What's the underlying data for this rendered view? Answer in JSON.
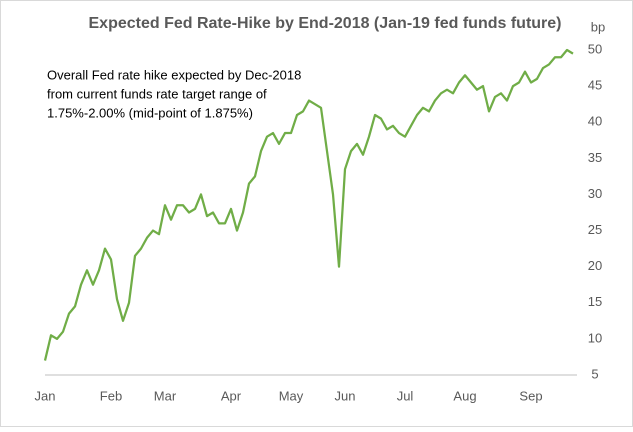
{
  "chart_data": {
    "type": "line",
    "title": "Expected Fed Rate-Hike by End-2018 (Jan-19 fed funds future)",
    "y_axis_label": "bp",
    "annotation": [
      "Overall Fed rate hike expected by Dec-2018",
      "from current funds rate target range of",
      "1.75%-2.00% (mid-point of 1.875%)"
    ],
    "categories": [
      "Jan",
      null,
      null,
      null,
      null,
      null,
      null,
      null,
      null,
      null,
      null,
      "Feb",
      null,
      null,
      null,
      null,
      null,
      null,
      null,
      null,
      "Mar",
      null,
      null,
      null,
      null,
      null,
      null,
      null,
      null,
      null,
      null,
      "Apr",
      null,
      null,
      null,
      null,
      null,
      null,
      null,
      null,
      null,
      "May",
      null,
      null,
      null,
      null,
      null,
      null,
      null,
      null,
      "Jun",
      null,
      null,
      null,
      null,
      null,
      null,
      null,
      null,
      null,
      "Jul",
      null,
      null,
      null,
      null,
      null,
      null,
      null,
      null,
      null,
      "Aug",
      null,
      null,
      null,
      null,
      null,
      null,
      null,
      null,
      null,
      null,
      "Sep",
      null,
      null,
      null,
      null,
      null,
      null,
      null
    ],
    "series": [
      {
        "name": "Expected Fed rate hike",
        "color": "#70ad47",
        "values": [
          7,
          10.5,
          10,
          11,
          13.5,
          14.5,
          17.5,
          19.5,
          17.5,
          19.5,
          22.5,
          21,
          15.5,
          12.5,
          15,
          21.5,
          22.5,
          24,
          25,
          24.5,
          28.5,
          26.5,
          28.5,
          28.5,
          27.5,
          28,
          30,
          27,
          27.5,
          26,
          26,
          28,
          25,
          27.5,
          31.5,
          32.5,
          36,
          38,
          38.5,
          37,
          38.5,
          38.5,
          41,
          41.5,
          43,
          42.5,
          42,
          36,
          30,
          20,
          33.5,
          36,
          37,
          35.5,
          38,
          41,
          40.5,
          39,
          39.5,
          38.5,
          38,
          39.5,
          41,
          42,
          41.5,
          43,
          44,
          44.5,
          44,
          45.5,
          46.5,
          45.5,
          44.5,
          45,
          41.5,
          43.5,
          44,
          43,
          45,
          45.5,
          47,
          45.5,
          46,
          47.5,
          48,
          49,
          49,
          50,
          49.5
        ]
      }
    ],
    "ylim": [
      5,
      50
    ],
    "yticks": [
      5,
      10,
      15,
      20,
      25,
      30,
      35,
      40,
      45,
      50
    ],
    "y_axis_side": "right",
    "grid": false
  }
}
